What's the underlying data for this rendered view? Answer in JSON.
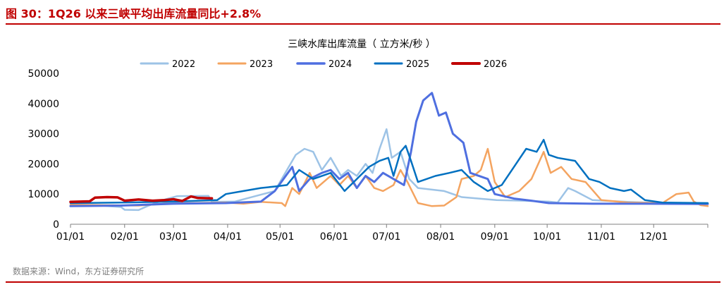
{
  "figure": {
    "title": "图 30：1Q26 以来三峡平均出库流量同比+2.8%",
    "source": "数据来源：Wind，东方证券研究所"
  },
  "chart_data": {
    "type": "line",
    "title": "三峡水库出库流量（ 立方米/秒 ）",
    "x_axis": {
      "ticks": [
        "01/01",
        "02/01",
        "03/01",
        "04/01",
        "05/01",
        "06/01",
        "07/01",
        "08/01",
        "09/01",
        "10/01",
        "11/01",
        "12/01"
      ],
      "tick_days": [
        1,
        32,
        60,
        91,
        121,
        152,
        182,
        213,
        244,
        274,
        305,
        335
      ],
      "range_days": [
        1,
        366
      ]
    },
    "ylim": [
      0,
      50000
    ],
    "yticks": [
      0,
      10000,
      20000,
      30000,
      40000,
      50000
    ],
    "ytick_labels": [
      "0",
      "10000",
      "20000",
      "30000",
      "40000",
      "50000"
    ],
    "legend_position": "top",
    "series": [
      {
        "name": "2022",
        "color": "#9dc3e6",
        "width": 2.5,
        "points": [
          [
            1,
            6200
          ],
          [
            20,
            6100
          ],
          [
            30,
            5700
          ],
          [
            32,
            4800
          ],
          [
            40,
            4700
          ],
          [
            45,
            6000
          ],
          [
            55,
            8200
          ],
          [
            62,
            9300
          ],
          [
            80,
            9400
          ],
          [
            82,
            7400
          ],
          [
            95,
            7500
          ],
          [
            110,
            9800
          ],
          [
            118,
            11000
          ],
          [
            122,
            15000
          ],
          [
            125,
            18000
          ],
          [
            130,
            23000
          ],
          [
            135,
            25000
          ],
          [
            140,
            24000
          ],
          [
            145,
            18000
          ],
          [
            150,
            22000
          ],
          [
            156,
            16000
          ],
          [
            160,
            18000
          ],
          [
            165,
            16000
          ],
          [
            170,
            20000
          ],
          [
            174,
            17000
          ],
          [
            178,
            25000
          ],
          [
            182,
            31500
          ],
          [
            185,
            22000
          ],
          [
            190,
            24000
          ],
          [
            195,
            15000
          ],
          [
            200,
            12000
          ],
          [
            215,
            11000
          ],
          [
            225,
            9000
          ],
          [
            235,
            8500
          ],
          [
            245,
            8000
          ],
          [
            260,
            7800
          ],
          [
            275,
            7500
          ],
          [
            280,
            7200
          ],
          [
            286,
            12000
          ],
          [
            290,
            11000
          ],
          [
            300,
            8000
          ],
          [
            320,
            7400
          ],
          [
            340,
            7000
          ],
          [
            366,
            6800
          ]
        ]
      },
      {
        "name": "2023",
        "color": "#f4a460",
        "width": 2.5,
        "points": [
          [
            1,
            6500
          ],
          [
            20,
            6300
          ],
          [
            40,
            6200
          ],
          [
            55,
            6800
          ],
          [
            70,
            7000
          ],
          [
            90,
            7200
          ],
          [
            100,
            6800
          ],
          [
            110,
            7400
          ],
          [
            122,
            7000
          ],
          [
            124,
            6000
          ],
          [
            128,
            12000
          ],
          [
            132,
            10000
          ],
          [
            138,
            17000
          ],
          [
            142,
            12000
          ],
          [
            150,
            16000
          ],
          [
            155,
            13000
          ],
          [
            160,
            16000
          ],
          [
            165,
            12000
          ],
          [
            170,
            16000
          ],
          [
            175,
            12000
          ],
          [
            180,
            11000
          ],
          [
            186,
            13000
          ],
          [
            190,
            18000
          ],
          [
            194,
            14000
          ],
          [
            200,
            7000
          ],
          [
            208,
            6000
          ],
          [
            215,
            6200
          ],
          [
            222,
            9000
          ],
          [
            225,
            15000
          ],
          [
            232,
            16000
          ],
          [
            236,
            18000
          ],
          [
            240,
            25000
          ],
          [
            244,
            14000
          ],
          [
            250,
            9000
          ],
          [
            258,
            11000
          ],
          [
            265,
            15000
          ],
          [
            272,
            24000
          ],
          [
            276,
            17000
          ],
          [
            282,
            19000
          ],
          [
            288,
            15000
          ],
          [
            296,
            14000
          ],
          [
            305,
            8000
          ],
          [
            320,
            7200
          ],
          [
            340,
            7000
          ],
          [
            348,
            10000
          ],
          [
            355,
            10500
          ],
          [
            358,
            7500
          ],
          [
            362,
            6300
          ],
          [
            366,
            6000
          ]
        ]
      },
      {
        "name": "2024",
        "color": "#4f6fe0",
        "width": 3,
        "points": [
          [
            1,
            6000
          ],
          [
            30,
            6200
          ],
          [
            60,
            6800
          ],
          [
            90,
            7000
          ],
          [
            110,
            7500
          ],
          [
            118,
            11000
          ],
          [
            123,
            15000
          ],
          [
            128,
            19000
          ],
          [
            132,
            11000
          ],
          [
            138,
            15000
          ],
          [
            145,
            17000
          ],
          [
            150,
            18000
          ],
          [
            155,
            15000
          ],
          [
            160,
            17000
          ],
          [
            165,
            12000
          ],
          [
            170,
            16000
          ],
          [
            175,
            14000
          ],
          [
            180,
            17000
          ],
          [
            186,
            15000
          ],
          [
            192,
            13000
          ],
          [
            196,
            24000
          ],
          [
            199,
            34000
          ],
          [
            203,
            41000
          ],
          [
            208,
            43500
          ],
          [
            212,
            36000
          ],
          [
            216,
            37000
          ],
          [
            220,
            30000
          ],
          [
            226,
            27000
          ],
          [
            230,
            17000
          ],
          [
            240,
            15000
          ],
          [
            244,
            10000
          ],
          [
            255,
            8500
          ],
          [
            265,
            7800
          ],
          [
            275,
            7000
          ],
          [
            300,
            6800
          ],
          [
            330,
            6800
          ],
          [
            366,
            6700
          ]
        ]
      },
      {
        "name": "2025",
        "color": "#0070c0",
        "width": 2.5,
        "points": [
          [
            1,
            7000
          ],
          [
            30,
            7200
          ],
          [
            60,
            7500
          ],
          [
            85,
            8000
          ],
          [
            90,
            10000
          ],
          [
            100,
            11000
          ],
          [
            110,
            12000
          ],
          [
            118,
            12500
          ],
          [
            125,
            13000
          ],
          [
            132,
            18000
          ],
          [
            140,
            15000
          ],
          [
            150,
            17000
          ],
          [
            158,
            11000
          ],
          [
            165,
            15000
          ],
          [
            172,
            19000
          ],
          [
            178,
            21000
          ],
          [
            183,
            22000
          ],
          [
            186,
            16000
          ],
          [
            190,
            24000
          ],
          [
            193,
            26000
          ],
          [
            196,
            21000
          ],
          [
            200,
            14000
          ],
          [
            210,
            16000
          ],
          [
            218,
            17000
          ],
          [
            225,
            18000
          ],
          [
            232,
            14000
          ],
          [
            240,
            11000
          ],
          [
            248,
            13000
          ],
          [
            255,
            19000
          ],
          [
            262,
            25000
          ],
          [
            268,
            24000
          ],
          [
            272,
            28000
          ],
          [
            275,
            23000
          ],
          [
            280,
            22000
          ],
          [
            290,
            21000
          ],
          [
            298,
            15000
          ],
          [
            304,
            14000
          ],
          [
            310,
            12000
          ],
          [
            318,
            11000
          ],
          [
            322,
            11500
          ],
          [
            330,
            8000
          ],
          [
            340,
            7200
          ],
          [
            366,
            7000
          ]
        ]
      },
      {
        "name": "2026",
        "color": "#c00000",
        "width": 3.5,
        "points": [
          [
            1,
            7400
          ],
          [
            12,
            7600
          ],
          [
            15,
            8800
          ],
          [
            22,
            9000
          ],
          [
            28,
            8900
          ],
          [
            32,
            7800
          ],
          [
            40,
            8200
          ],
          [
            48,
            7800
          ],
          [
            55,
            8000
          ],
          [
            60,
            8300
          ],
          [
            65,
            7700
          ],
          [
            70,
            9200
          ],
          [
            74,
            8700
          ],
          [
            82,
            8600
          ]
        ]
      }
    ]
  }
}
